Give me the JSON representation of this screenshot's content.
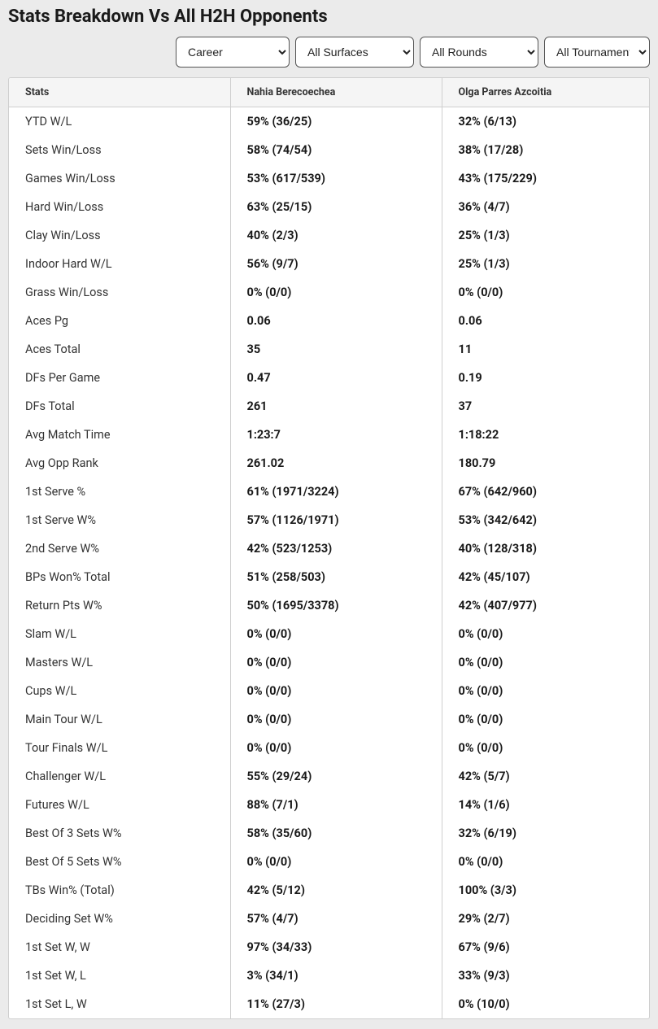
{
  "title": "Stats Breakdown Vs All H2H Opponents",
  "filters": {
    "period": {
      "selected": "Career",
      "options": [
        "Career"
      ]
    },
    "surface": {
      "selected": "All Surfaces",
      "options": [
        "All Surfaces"
      ]
    },
    "round": {
      "selected": "All Rounds",
      "options": [
        "All Rounds"
      ]
    },
    "tour": {
      "selected": "All Tournaments",
      "options": [
        "All Tournaments"
      ]
    }
  },
  "table": {
    "columns": [
      "Stats",
      "Nahia Berecoechea",
      "Olga Parres Azcoitia"
    ],
    "rows": [
      [
        "YTD W/L",
        "59% (36/25)",
        "32% (6/13)"
      ],
      [
        "Sets Win/Loss",
        "58% (74/54)",
        "38% (17/28)"
      ],
      [
        "Games Win/Loss",
        "53% (617/539)",
        "43% (175/229)"
      ],
      [
        "Hard Win/Loss",
        "63% (25/15)",
        "36% (4/7)"
      ],
      [
        "Clay Win/Loss",
        "40% (2/3)",
        "25% (1/3)"
      ],
      [
        "Indoor Hard W/L",
        "56% (9/7)",
        "25% (1/3)"
      ],
      [
        "Grass Win/Loss",
        "0% (0/0)",
        "0% (0/0)"
      ],
      [
        "Aces Pg",
        "0.06",
        "0.06"
      ],
      [
        "Aces Total",
        "35",
        "11"
      ],
      [
        "DFs Per Game",
        "0.47",
        "0.19"
      ],
      [
        "DFs Total",
        "261",
        "37"
      ],
      [
        "Avg Match Time",
        "1:23:7",
        "1:18:22"
      ],
      [
        "Avg Opp Rank",
        "261.02",
        "180.79"
      ],
      [
        "1st Serve %",
        "61% (1971/3224)",
        "67% (642/960)"
      ],
      [
        "1st Serve W%",
        "57% (1126/1971)",
        "53% (342/642)"
      ],
      [
        "2nd Serve W%",
        "42% (523/1253)",
        "40% (128/318)"
      ],
      [
        "BPs Won% Total",
        "51% (258/503)",
        "42% (45/107)"
      ],
      [
        "Return Pts W%",
        "50% (1695/3378)",
        "42% (407/977)"
      ],
      [
        "Slam W/L",
        "0% (0/0)",
        "0% (0/0)"
      ],
      [
        "Masters W/L",
        "0% (0/0)",
        "0% (0/0)"
      ],
      [
        "Cups W/L",
        "0% (0/0)",
        "0% (0/0)"
      ],
      [
        "Main Tour W/L",
        "0% (0/0)",
        "0% (0/0)"
      ],
      [
        "Tour Finals W/L",
        "0% (0/0)",
        "0% (0/0)"
      ],
      [
        "Challenger W/L",
        "55% (29/24)",
        "42% (5/7)"
      ],
      [
        "Futures W/L",
        "88% (7/1)",
        "14% (1/6)"
      ],
      [
        "Best Of 3 Sets W%",
        "58% (35/60)",
        "32% (6/19)"
      ],
      [
        "Best Of 5 Sets W%",
        "0% (0/0)",
        "0% (0/0)"
      ],
      [
        "TBs Win% (Total)",
        "42% (5/12)",
        "100% (3/3)"
      ],
      [
        "Deciding Set W%",
        "57% (4/7)",
        "29% (2/7)"
      ],
      [
        "1st Set W, W",
        "97% (34/33)",
        "67% (9/6)"
      ],
      [
        "1st Set W, L",
        "3% (34/1)",
        "33% (9/3)"
      ],
      [
        "1st Set L, W",
        "11% (27/3)",
        "0% (10/0)"
      ]
    ]
  }
}
